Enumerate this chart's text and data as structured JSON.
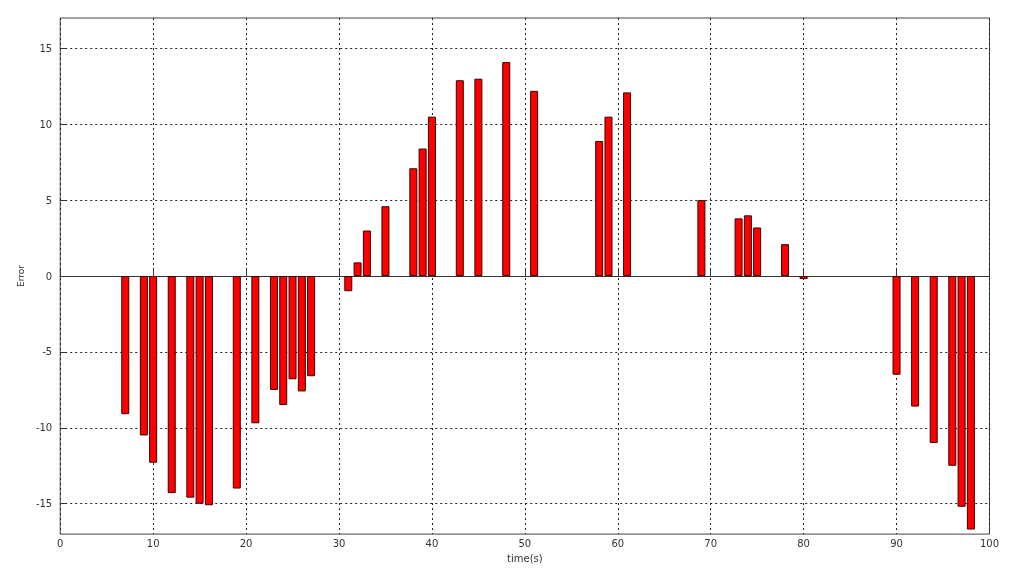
{
  "chart_data": {
    "type": "bar",
    "xlabel": "time(s)",
    "ylabel": "Error",
    "x": [
      7,
      9,
      10,
      12,
      14,
      15,
      16,
      19,
      21,
      23,
      24,
      25,
      26,
      27,
      31,
      32,
      33,
      35,
      38,
      39,
      40,
      43,
      45,
      48,
      51,
      58,
      59,
      61,
      69,
      73,
      74,
      75,
      78,
      80,
      90,
      92,
      94,
      96,
      97,
      98
    ],
    "values": [
      -9.1,
      -10.5,
      -12.3,
      -14.3,
      -14.6,
      -15.0,
      -15.1,
      -14.0,
      -9.7,
      -7.5,
      -8.5,
      -6.8,
      -7.6,
      -6.6,
      -1.0,
      0.9,
      3.0,
      4.6,
      7.1,
      8.4,
      10.5,
      12.9,
      13.0,
      14.1,
      12.2,
      8.9,
      10.5,
      12.1,
      5.0,
      3.8,
      4.0,
      3.2,
      2.1,
      -0.2,
      -6.5,
      -8.6,
      -11.0,
      -12.5,
      -15.2,
      -16.7
    ],
    "color": "#ff0000",
    "xlim": [
      0,
      100
    ],
    "xticks": [
      0,
      10,
      20,
      30,
      40,
      50,
      60,
      70,
      80,
      90,
      100
    ],
    "ylim": [
      -17,
      17
    ],
    "yticks": [
      -15,
      -10,
      -5,
      0,
      5,
      10,
      15
    ],
    "grid": true
  }
}
